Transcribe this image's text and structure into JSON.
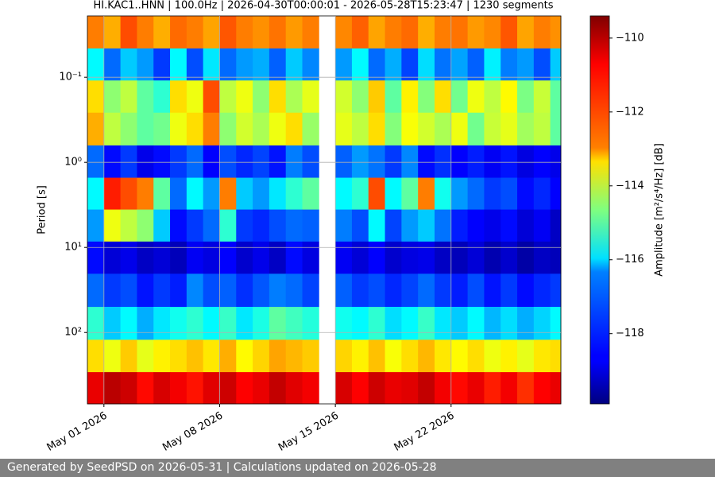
{
  "chart_data": {
    "type": "heatmap",
    "title": "HI.KAC1..HNN | 100.0Hz | 2026-04-30T00:00:01 - 2026-05-28T15:23:47 | 1230 segments",
    "ylabel": "Period [s]",
    "colorbar_label": "Amplitude [m²/s⁴/Hz] [dB]",
    "colormap": "jet",
    "ylog": true,
    "yinverted": true,
    "grid": true,
    "x": [
      "2026-04-30",
      "2026-05-01",
      "2026-05-02",
      "2026-05-03",
      "2026-05-04",
      "2026-05-05",
      "2026-05-06",
      "2026-05-07",
      "2026-05-08",
      "2026-05-09",
      "2026-05-10",
      "2026-05-11",
      "2026-05-12",
      "2026-05-13",
      "2026-05-14",
      "2026-05-15",
      "2026-05-16",
      "2026-05-17",
      "2026-05-18",
      "2026-05-19",
      "2026-05-20",
      "2026-05-21",
      "2026-05-22",
      "2026-05-23",
      "2026-05-24",
      "2026-05-25",
      "2026-05-26",
      "2026-05-27",
      "2026-05-28"
    ],
    "xlim": [
      "2026-04-30T00:00:01",
      "2026-05-28T15:23:47"
    ],
    "xticks": [
      {
        "value": "2026-05-01",
        "label": "May 01 2026"
      },
      {
        "value": "2026-05-08",
        "label": "May 08 2026"
      },
      {
        "value": "2026-05-15",
        "label": "May 15 2026"
      },
      {
        "value": "2026-05-22",
        "label": "May 22 2026"
      }
    ],
    "y": [
      0.03,
      0.07,
      0.17,
      0.4,
      1,
      2.3,
      5.6,
      13,
      32,
      78,
      190,
      450
    ],
    "ylim": [
      0.019,
      690
    ],
    "yticks": [
      {
        "value": 0.1,
        "label": "10⁻¹"
      },
      {
        "value": 1,
        "label": "10⁰"
      },
      {
        "value": 10,
        "label": "10¹"
      },
      {
        "value": 100,
        "label": "10²"
      }
    ],
    "clim": [
      -119.9,
      -109.4
    ],
    "cticks": [
      {
        "value": -110,
        "label": "−110"
      },
      {
        "value": -112,
        "label": "−112"
      },
      {
        "value": -114,
        "label": "−114"
      },
      {
        "value": -116,
        "label": "−116"
      },
      {
        "value": -118,
        "label": "−118"
      }
    ],
    "z": [
      [
        -112,
        -112.5,
        -111.5,
        -112,
        -112.5,
        -111.8,
        -112,
        -112.4,
        -111.6,
        -112,
        -112.2,
        -111.9,
        -112.3,
        -112,
        null,
        -112.1,
        -111.7,
        -112.4,
        -112,
        -111.8,
        -112.5,
        -112,
        -111.9,
        -112.3,
        -112.1,
        -111.6,
        -112.4,
        -112,
        -112.2
      ],
      [
        -116,
        -117.5,
        -116.5,
        -117,
        -118,
        -116,
        -117.8,
        -116.2,
        -117.5,
        -117,
        -116.8,
        -117.6,
        -116.5,
        -117.2,
        null,
        -117,
        -116,
        -117.5,
        -116.8,
        -117.9,
        -116.3,
        -117.4,
        -116.9,
        -117.6,
        -116.1,
        -117.3,
        -117,
        -117.8,
        -116.5
      ],
      [
        -113,
        -114.5,
        -114,
        -115,
        -115.5,
        -113,
        -113.5,
        -111.5,
        -114,
        -113.5,
        -114.5,
        -113,
        -114.2,
        -113.6,
        null,
        -113.8,
        -114.5,
        -112.8,
        -115,
        -113.2,
        -114.6,
        -113,
        -114.8,
        -113.5,
        -114,
        -113.3,
        -114.7,
        -113.9,
        -115
      ],
      [
        -112.5,
        -114,
        -114.5,
        -115,
        -114.8,
        -113.5,
        -113,
        -112,
        -114.5,
        -113.8,
        -114.2,
        -113.5,
        -113,
        -114.4,
        null,
        -113.6,
        -114,
        -113,
        -114.6,
        -113.4,
        -113.8,
        -114.2,
        -113.5,
        -114.8,
        -113.9,
        -113.6,
        -114.3,
        -114,
        -115
      ],
      [
        -117.5,
        -118.5,
        -118,
        -118.8,
        -118.5,
        -118,
        -117.5,
        -118.6,
        -117.8,
        -118.2,
        -117.9,
        -118.4,
        -117.3,
        -117.8,
        null,
        -117.6,
        -117,
        -117.4,
        -118,
        -117.2,
        -118.5,
        -118.1,
        -118.6,
        -118.3,
        -118.7,
        -118.4,
        -118.9,
        -118.6,
        -118.8
      ],
      [
        -116,
        -111,
        -111.5,
        -112,
        -115,
        -117.5,
        -116,
        -117,
        -112,
        -116.5,
        -117,
        -116.2,
        -115.5,
        -115,
        null,
        -116,
        -115.5,
        -111.5,
        -116,
        -115,
        -112,
        -115.8,
        -117,
        -117.5,
        -118,
        -117.8,
        -118.5,
        -118.2,
        -118.6
      ],
      [
        -117,
        -113.5,
        -114,
        -114.5,
        -116.5,
        -118.5,
        -118,
        -117.5,
        -115.5,
        -118,
        -118.2,
        -117.8,
        -117.5,
        -117.6,
        null,
        -117.3,
        -117.8,
        -116,
        -117.9,
        -117,
        -116.5,
        -117.4,
        -118.3,
        -118.6,
        -118.8,
        -118.5,
        -119,
        -118.7,
        -119.2
      ],
      [
        -118.5,
        -119,
        -118.8,
        -119.2,
        -119,
        -119.3,
        -118.7,
        -118.9,
        -118.6,
        -119.1,
        -118.8,
        -119.2,
        -118.5,
        -118.9,
        null,
        -118.7,
        -119,
        -118.6,
        -119.1,
        -118.9,
        -118.8,
        -119.2,
        -119.3,
        -119,
        -119.4,
        -119.1,
        -119.5,
        -119.2,
        -119.3
      ],
      [
        -117.5,
        -118,
        -117.8,
        -118.4,
        -118,
        -118.3,
        -117.2,
        -117.8,
        -117.6,
        -118.1,
        -117.7,
        -117.3,
        -117.5,
        -117.9,
        null,
        -117.6,
        -118,
        -117.8,
        -118.2,
        -117.9,
        -117.5,
        -118,
        -118.3,
        -117.8,
        -118.4,
        -118,
        -118.5,
        -118.2,
        -118
      ],
      [
        -115.5,
        -116.5,
        -116,
        -116.8,
        -116.2,
        -115.8,
        -115.5,
        -116,
        -115.4,
        -116.2,
        -115.7,
        -115,
        -115.3,
        -115.6,
        null,
        -115.8,
        -116,
        -115.5,
        -116.3,
        -116,
        -115.4,
        -116.2,
        -116.5,
        -116,
        -116.7,
        -116.3,
        -116.8,
        -116.4,
        -116
      ],
      [
        -113,
        -113.5,
        -112.8,
        -113.6,
        -113.2,
        -113,
        -112.7,
        -113.1,
        -112.5,
        -113.3,
        -112.9,
        -112.4,
        -112.6,
        -112.8,
        null,
        -112.9,
        -113.2,
        -112.7,
        -113.4,
        -113,
        -112.6,
        -113.1,
        -113.3,
        -113,
        -113.5,
        -113.2,
        -113.6,
        -113.1,
        -113
      ],
      [
        -110.5,
        -110,
        -110.2,
        -110.8,
        -110.3,
        -110.6,
        -110.9,
        -110.4,
        -110.2,
        -110.7,
        -110.5,
        -110.1,
        -110.4,
        -110.6,
        null,
        -110.3,
        -110.7,
        -110.2,
        -110.5,
        -110.4,
        -110.1,
        -110.6,
        -110.8,
        -110.5,
        -111,
        -110.6,
        -111.2,
        -110.7,
        -110.5
      ]
    ]
  },
  "footer": "Generated by SeedPSD on 2026-05-31 | Calculations updated on 2026-05-28"
}
